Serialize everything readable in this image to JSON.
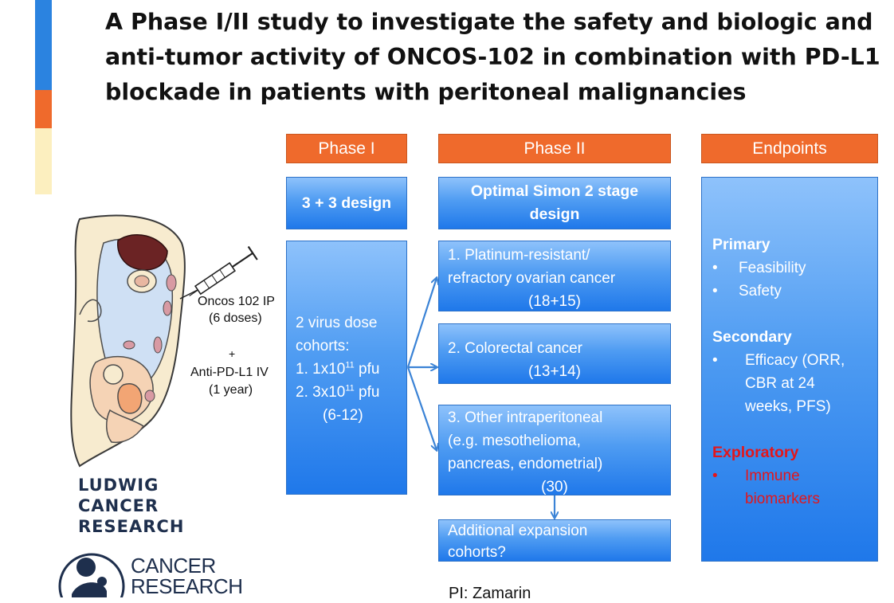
{
  "title_lines": [
    "A Phase I/II study to investigate the safety and biologic and",
    "anti-tumor activity of ONCOS-102 in combination with PD-L1",
    "blockade in patients with peritoneal malignancies"
  ],
  "colors": {
    "accent_blue": "#2b83e0",
    "accent_orange": "#ef6a2c",
    "accent_yellow": "#fcefbf",
    "header_orange": "#ef6a2c",
    "box_blue": "#3d8ef0",
    "exploratory_red": "#e3161b"
  },
  "headers": {
    "phase1": "Phase I",
    "phase2": "Phase II",
    "endpoints": "Endpoints"
  },
  "phase1": {
    "design": "3 + 3 design",
    "cohorts_title_1": "2  virus dose",
    "cohorts_title_2": "cohorts:",
    "dose1_prefix": "1. 1x10",
    "dose1_exp": "11",
    "dose1_suffix": " pfu",
    "dose2_prefix": "2. 3x10",
    "dose2_exp": "11",
    "dose2_suffix": " pfu",
    "range": "(6-12)"
  },
  "phase2": {
    "design_line1": "Optimal Simon 2 stage",
    "design_line2": "design",
    "cohort1_line1": "1. Platinum-resistant/",
    "cohort1_line2": "refractory ovarian cancer",
    "cohort1_n": "(18+15)",
    "cohort2_line1": "2. Colorectal cancer",
    "cohort2_n": "(13+14)",
    "cohort3_line1": "3. Other intraperitoneal",
    "cohort3_line2": "(e.g. mesothelioma,",
    "cohort3_line3": "pancreas, endometrial)",
    "cohort3_n": "(30)",
    "expansion_line1": "Additional expansion",
    "expansion_line2": "cohorts?"
  },
  "endpoints": {
    "primary": "Primary",
    "primary_items": [
      "Feasibility",
      "Safety"
    ],
    "secondary": "Secondary",
    "secondary_item_lines": [
      "Efficacy (ORR,",
      "CBR at 24",
      "weeks, PFS)"
    ],
    "exploratory": "Exploratory",
    "exploratory_item_lines": [
      "Immune",
      "biomarkers"
    ],
    "bullet": "•"
  },
  "diagram": {
    "ip_label": "Oncos 102 IP",
    "ip_doses": "(6 doses)",
    "plus": "+",
    "iv_label": "Anti-PD-L1 IV",
    "iv_duration": "(1 year)"
  },
  "logos": {
    "ludwig_lines": [
      "LUDWIG",
      "CANCER",
      "RESEARCH"
    ],
    "cri_lines": [
      "CANCER",
      "RESEARCH"
    ]
  },
  "footer": {
    "pi": "PI: Zamarin"
  }
}
